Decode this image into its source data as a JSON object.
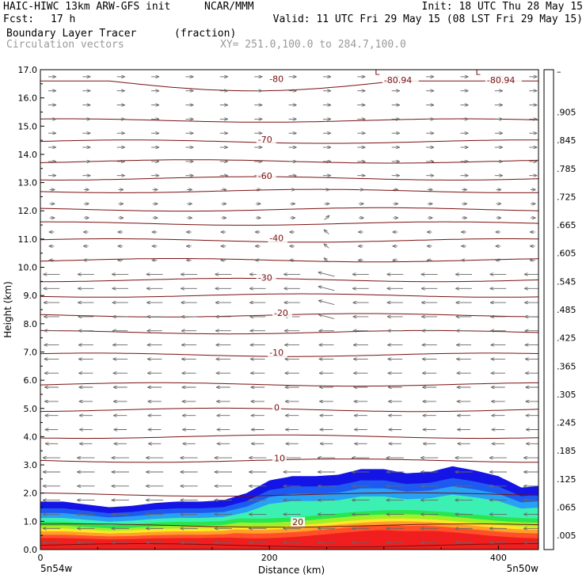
{
  "header": {
    "model": "HAIC-HIWC 13km ARW-GFS init",
    "org": "NCAR/MMM",
    "init": "Init: 18 UTC Thu 28 May 15",
    "fcst_label": "Fcst:",
    "fcst_value": "17 h",
    "valid": "Valid: 11 UTC Fri 29 May 15 (08 LST Fri 29 May 15)",
    "field": "Boundary Layer Tracer",
    "field_units": "(fraction)",
    "overlay": "Circulation vectors",
    "xy_range": "XY= 251.0,100.0 to 284.7,100.0"
  },
  "chart_data": {
    "type": "heatmap",
    "title": "Boundary Layer Tracer",
    "xlabel": "Distance (km)",
    "ylabel": "Height (km)",
    "xlim": [
      0,
      435
    ],
    "ylim": [
      0,
      17
    ],
    "x_ticks": [
      "0",
      "200",
      "400"
    ],
    "x_tick_values": [
      0,
      200,
      400
    ],
    "y_ticks": [
      "0.0",
      "1.0",
      "2.0",
      "3.0",
      "4.0",
      "5.0",
      "6.0",
      "7.0",
      "8.0",
      "9.0",
      "10.0",
      "11.0",
      "12.0",
      "13.0",
      "14.0",
      "15.0",
      "16.0",
      "17.0"
    ],
    "endpoint_labels": {
      "left": "5n54w",
      "right": "5n50w"
    },
    "colorbar": {
      "labels": [
        ".005",
        ".065",
        ".125",
        ".185",
        ".245",
        ".305",
        ".365",
        ".425",
        ".485",
        ".545",
        ".605",
        ".665",
        ".725",
        ".785",
        ".845",
        ".905"
      ],
      "top_label": "–",
      "colors": [
        "#ffffff",
        "#1414e6",
        "#1e5af0",
        "#28a0f5",
        "#3cdcf0",
        "#3cf0b4",
        "#28e650",
        "#50f028",
        "#a0f028",
        "#e6f028",
        "#ffe628",
        "#ffc828",
        "#ffa028",
        "#ff7828",
        "#ff5028",
        "#ff3228",
        "#f01e1e"
      ]
    },
    "temperature_contours": {
      "units": "C",
      "labels": [
        {
          "text": "-80",
          "x": 100,
          "y": 16.6
        },
        {
          "text": "-80.94",
          "x": 150,
          "y": 16.55
        },
        {
          "text": "L",
          "x": 146,
          "y": 16.85
        },
        {
          "text": "-80.94",
          "x": 395,
          "y": 16.55
        },
        {
          "text": "L",
          "x": 390,
          "y": 16.85
        },
        {
          "text": "-70",
          "x": 95,
          "y": 14.45
        },
        {
          "text": "-60",
          "x": 95,
          "y": 13.15
        },
        {
          "text": "-40",
          "x": 100,
          "y": 10.95
        },
        {
          "text": "-30",
          "x": 95,
          "y": 9.55
        },
        {
          "text": "-20",
          "x": 102,
          "y": 8.3
        },
        {
          "text": "-10",
          "x": 100,
          "y": 6.9
        },
        {
          "text": "0",
          "x": 102,
          "y": 4.95
        },
        {
          "text": "10",
          "x": 102,
          "y": 3.15
        },
        {
          "text": "20",
          "x": 110,
          "y": 0.9
        }
      ]
    },
    "tracer_top_km": {
      "x": [
        0,
        20,
        40,
        60,
        80,
        100,
        120,
        140,
        160,
        180,
        200,
        220,
        240,
        260,
        280,
        300,
        320,
        340,
        360,
        380,
        400,
        420,
        435
      ],
      "y": [
        1.7,
        1.7,
        1.6,
        1.5,
        1.55,
        1.65,
        1.7,
        1.7,
        1.75,
        2.0,
        2.45,
        2.6,
        2.6,
        2.65,
        2.85,
        2.85,
        2.7,
        2.75,
        2.95,
        2.8,
        2.6,
        2.2,
        2.25
      ]
    }
  }
}
